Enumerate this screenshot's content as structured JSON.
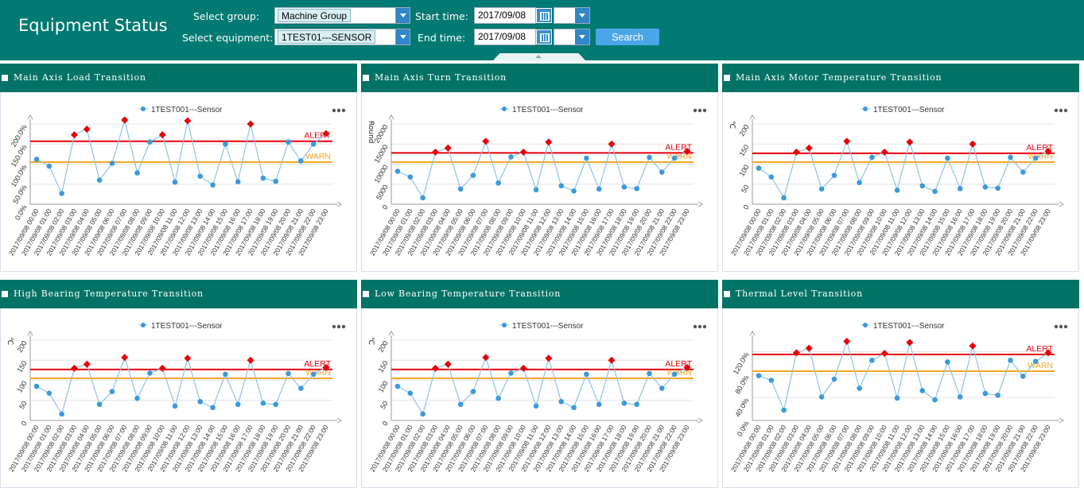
{
  "header": {
    "title": "Equipment Status",
    "select_group_label": "Select group:",
    "select_group_value": "Machine Group",
    "select_equipment_label": "Select equipment:",
    "select_equipment_value": "1TEST01---SENSOR",
    "start_time_label": "Start time:",
    "start_time_value": "2017/09/08",
    "end_time_label": "End time:",
    "end_time_value": "2017/09/08",
    "search_label": "Search"
  },
  "colors": {
    "header_bg": "#007a72",
    "panel_header_bg": "#007366",
    "series": "#3b9ad9",
    "series_line": "#8ac4ea",
    "alert": "#e8000b",
    "warn": "#f5a623",
    "alert_marker": "#e8000b"
  },
  "icons": {
    "more": "more-options-icon",
    "calendar": "calendar-icon",
    "dropdown": "chevron-down-icon"
  },
  "chart_data": [
    {
      "type": "line",
      "title": "Main Axis Load Transition",
      "legend": "1TEST001---Sensor",
      "ylabel": "",
      "ylim": [
        0,
        2.0
      ],
      "yticks": [
        "0.0%",
        "50.0%",
        "100.0%",
        "150.0%",
        "200.0%"
      ],
      "ytick_values": [
        0,
        0.5,
        1.0,
        1.5,
        2.0
      ],
      "alert": 1.57,
      "warn": 1.05,
      "alert_label": "ALERT",
      "warn_label": "WARN",
      "x": [
        "2017/09/08 00:00",
        "2017/09/08 01:00",
        "2017/09/08 02:00",
        "2017/09/08 03:00",
        "2017/09/08 04:00",
        "2017/09/08 05:00",
        "2017/09/08 06:00",
        "2017/09/08 07:00",
        "2017/09/08 08:00",
        "2017/09/08 09:00",
        "2017/09/08 10:00",
        "2017/09/08 11:00",
        "2017/09/08 12:00",
        "2017/09/08 13:00",
        "2017/09/08 14:00",
        "2017/09/08 15:00",
        "2017/09/08 16:00",
        "2017/09/08 17:00",
        "2017/09/08 18:00",
        "2017/09/08 19:00",
        "2017/09/08 20:00",
        "2017/09/08 21:00",
        "2017/09/08 22:00",
        "2017/09/08 23:00"
      ],
      "values": [
        1.12,
        0.95,
        0.27,
        1.73,
        1.87,
        0.6,
        1.02,
        2.1,
        0.78,
        1.55,
        1.73,
        0.55,
        2.08,
        0.7,
        0.48,
        1.5,
        0.56,
        2.0,
        0.65,
        0.57,
        1.55,
        1.08,
        1.5,
        1.76
      ]
    },
    {
      "type": "line",
      "title": "Main Axis Turn Transition",
      "legend": "1TEST001---Sensor",
      "ylabel": "Round",
      "ylim": [
        0,
        20000
      ],
      "yticks": [
        "0",
        "5000",
        "10000",
        "15000",
        "20000"
      ],
      "ytick_values": [
        0,
        5000,
        10000,
        15000,
        20000
      ],
      "alert": 12800,
      "warn": 10500,
      "alert_label": "ALERT",
      "warn_label": "WARN",
      "x": [
        "2017/09/08 00:00",
        "2017/09/08 01:00",
        "2017/09/08 02:00",
        "2017/09/08 03:00",
        "2017/09/08 04:00",
        "2017/09/08 05:00",
        "2017/09/08 06:00",
        "2017/09/08 07:00",
        "2017/09/08 08:00",
        "2017/09/08 09:00",
        "2017/09/08 10:00",
        "2017/09/08 11:00",
        "2017/09/08 12:00",
        "2017/09/08 13:00",
        "2017/09/08 14:00",
        "2017/09/08 15:00",
        "2017/09/08 16:00",
        "2017/09/08 17:00",
        "2017/09/08 18:00",
        "2017/09/08 19:00",
        "2017/09/08 20:00",
        "2017/09/08 21:00",
        "2017/09/08 22:00",
        "2017/09/08 23:00"
      ],
      "values": [
        8200,
        6800,
        1600,
        13000,
        14000,
        3800,
        7200,
        15700,
        5300,
        11800,
        13000,
        3600,
        15500,
        4600,
        3300,
        11500,
        3800,
        15000,
        4300,
        3900,
        11700,
        8000,
        11500,
        13200
      ]
    },
    {
      "type": "line",
      "title": "Main Axis Motor Temperature Transition",
      "legend": "1TEST001---Sensor",
      "ylabel": "℃",
      "ylim": [
        0,
        200
      ],
      "yticks": [
        "0",
        "50",
        "100",
        "150",
        "200"
      ],
      "ytick_values": [
        0,
        50,
        100,
        150,
        200
      ],
      "alert": 127,
      "warn": 105,
      "alert_label": "ALERT",
      "warn_label": "WARN",
      "x": [
        "2017/09/08 00:00",
        "2017/09/08 01:00",
        "2017/09/08 02:00",
        "2017/09/08 03:00",
        "2017/09/08 04:00",
        "2017/09/08 05:00",
        "2017/09/08 06:00",
        "2017/09/08 07:00",
        "2017/09/08 08:00",
        "2017/09/08 09:00",
        "2017/09/08 10:00",
        "2017/09/08 11:00",
        "2017/09/08 12:00",
        "2017/09/08 13:00",
        "2017/09/08 14:00",
        "2017/09/08 15:00",
        "2017/09/08 16:00",
        "2017/09/08 17:00",
        "2017/09/08 18:00",
        "2017/09/08 19:00",
        "2017/09/08 20:00",
        "2017/09/08 21:00",
        "2017/09/08 22:00",
        "2017/09/08 23:00"
      ],
      "values": [
        90,
        68,
        16,
        130,
        140,
        38,
        72,
        157,
        54,
        117,
        130,
        35,
        155,
        46,
        32,
        115,
        39,
        150,
        43,
        40,
        117,
        80,
        115,
        132
      ]
    },
    {
      "type": "line",
      "title": "High Bearing Temperature Transition",
      "legend": "1TEST001---Sensor",
      "ylabel": "℃",
      "ylim": [
        0,
        200
      ],
      "yticks": [
        "0",
        "50",
        "100",
        "150",
        "200"
      ],
      "ytick_values": [
        0,
        50,
        100,
        150,
        200
      ],
      "alert": 127,
      "warn": 105,
      "alert_label": "ALERT",
      "warn_label": "WARN",
      "x": [
        "2017/09/08 00:00",
        "2017/09/08 01:00",
        "2017/09/08 02:00",
        "2017/09/08 03:00",
        "2017/09/08 04:00",
        "2017/09/08 05:00",
        "2017/09/08 06:00",
        "2017/09/08 07:00",
        "2017/09/08 08:00",
        "2017/09/08 09:00",
        "2017/09/08 10:00",
        "2017/09/08 11:00",
        "2017/09/08 12:00",
        "2017/09/08 13:00",
        "2017/09/08 14:00",
        "2017/09/08 15:00",
        "2017/09/08 16:00",
        "2017/09/08 17:00",
        "2017/09/08 18:00",
        "2017/09/08 19:00",
        "2017/09/08 20:00",
        "2017/09/08 21:00",
        "2017/09/08 22:00",
        "2017/09/08 23:00"
      ],
      "values": [
        85,
        68,
        16,
        130,
        140,
        40,
        72,
        157,
        55,
        118,
        130,
        36,
        155,
        47,
        32,
        115,
        40,
        150,
        43,
        40,
        117,
        80,
        115,
        132
      ]
    },
    {
      "type": "line",
      "title": "Low Bearing Temperature Transition",
      "legend": "1TEST001---Sensor",
      "ylabel": "℃",
      "ylim": [
        0,
        200
      ],
      "yticks": [
        "0",
        "50",
        "100",
        "150",
        "200"
      ],
      "ytick_values": [
        0,
        50,
        100,
        150,
        200
      ],
      "alert": 127,
      "warn": 105,
      "alert_label": "ALERT",
      "warn_label": "WARN",
      "x": [
        "2017/09/08 00:00",
        "2017/09/08 01:00",
        "2017/09/08 02:00",
        "2017/09/08 03:00",
        "2017/09/08 04:00",
        "2017/09/08 05:00",
        "2017/09/08 06:00",
        "2017/09/08 07:00",
        "2017/09/08 08:00",
        "2017/09/08 09:00",
        "2017/09/08 10:00",
        "2017/09/08 11:00",
        "2017/09/08 12:00",
        "2017/09/08 13:00",
        "2017/09/08 14:00",
        "2017/09/08 15:00",
        "2017/09/08 16:00",
        "2017/09/08 17:00",
        "2017/09/08 18:00",
        "2017/09/08 19:00",
        "2017/09/08 20:00",
        "2017/09/08 21:00",
        "2017/09/08 22:00",
        "2017/09/08 23:00"
      ],
      "values": [
        85,
        68,
        16,
        130,
        140,
        40,
        72,
        157,
        55,
        118,
        130,
        36,
        155,
        47,
        32,
        115,
        40,
        150,
        43,
        40,
        117,
        80,
        115,
        132
      ]
    },
    {
      "type": "line",
      "title": "Thermal Level Transition",
      "legend": "1TEST001---Sensor",
      "ylabel": "",
      "ylim": [
        0,
        1.4
      ],
      "yticks": [
        "0.0%",
        "40.0%",
        "80.0%",
        "120.0%"
      ],
      "ytick_values": [
        0,
        0.4,
        0.8,
        1.2
      ],
      "alert": 1.15,
      "warn": 0.86,
      "alert_label": "ALERT",
      "warn_label": "WARN",
      "x": [
        "2017/09/08 00:00",
        "2017/09/08 01:00",
        "2017/09/08 02:00",
        "2017/09/08 03:00",
        "2017/09/08 04:00",
        "2017/09/08 05:00",
        "2017/09/08 06:00",
        "2017/09/08 07:00",
        "2017/09/08 08:00",
        "2017/09/08 09:00",
        "2017/09/08 10:00",
        "2017/09/08 11:00",
        "2017/09/08 12:00",
        "2017/09/08 13:00",
        "2017/09/08 14:00",
        "2017/09/08 15:00",
        "2017/09/08 16:00",
        "2017/09/08 17:00",
        "2017/09/08 18:00",
        "2017/09/08 19:00",
        "2017/09/08 20:00",
        "2017/09/08 21:00",
        "2017/09/08 22:00",
        "2017/09/08 23:00"
      ],
      "values": [
        0.78,
        0.7,
        0.18,
        1.18,
        1.26,
        0.41,
        0.72,
        1.38,
        0.56,
        1.05,
        1.17,
        0.39,
        1.36,
        0.52,
        0.36,
        1.02,
        0.41,
        1.3,
        0.47,
        0.44,
        1.05,
        0.77,
        1.03,
        1.18
      ]
    }
  ]
}
